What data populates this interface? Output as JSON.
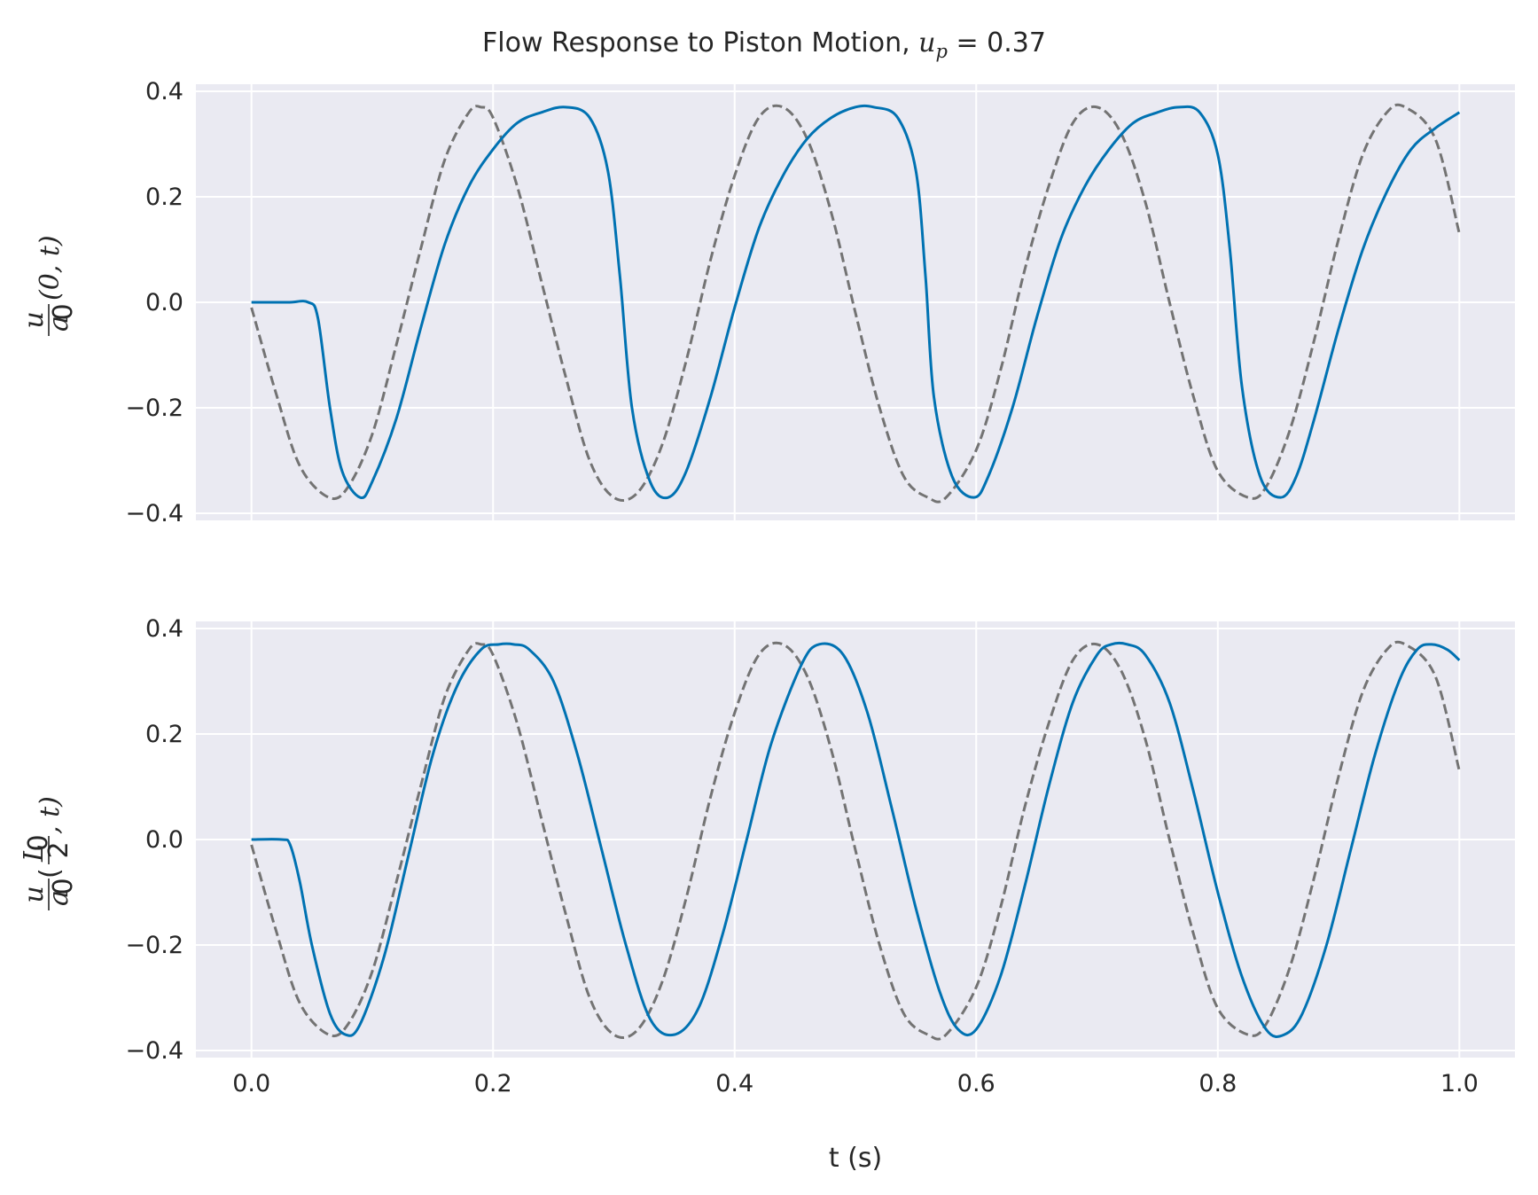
{
  "figure": {
    "title_prefix": "Flow Response to Piston Motion, ",
    "title_math_u": "u",
    "title_math_sub": "p",
    "title_math_rest": " = 0.37",
    "xlabel": "t (s)"
  },
  "colors": {
    "response": "#0072b2",
    "piston": "#737373",
    "panel_bg": "#eaeaf2",
    "grid": "#ffffff"
  },
  "chart_data": [
    {
      "type": "line",
      "panel": "top",
      "ylabel": {
        "frac_num": "u",
        "frac_den": "a",
        "frac_den_sub": "0",
        "args": "(0, t)"
      },
      "xlim": [
        -0.046,
        1.046
      ],
      "ylim": [
        -0.4,
        0.4
      ],
      "xticks": [
        0.0,
        0.2,
        0.4,
        0.6,
        0.8,
        1.0
      ],
      "xtick_labels": [
        "0.0",
        "0.2",
        "0.4",
        "0.6",
        "0.8",
        "1.0"
      ],
      "yticks": [
        -0.4,
        -0.2,
        0.0,
        0.2,
        0.4
      ],
      "ytick_labels": [
        "−0.4",
        "−0.2",
        "0.0",
        "0.2",
        "0.4"
      ],
      "show_xtick_labels": false,
      "grid": true,
      "series": [
        {
          "style": "dashed",
          "color": "#737373",
          "x": [
            0.0,
            0.02,
            0.04,
            0.064,
            0.08,
            0.1,
            0.12,
            0.14,
            0.16,
            0.18,
            0.19,
            0.2,
            0.22,
            0.24,
            0.26,
            0.28,
            0.3,
            0.32,
            0.34,
            0.36,
            0.38,
            0.4,
            0.42,
            0.44,
            0.46,
            0.48,
            0.5,
            0.52,
            0.54,
            0.56,
            0.575,
            0.6,
            0.62,
            0.64,
            0.66,
            0.68,
            0.7,
            0.72,
            0.74,
            0.76,
            0.78,
            0.8,
            0.825,
            0.84,
            0.86,
            0.88,
            0.9,
            0.92,
            0.94,
            0.955,
            0.98,
            1.0
          ],
          "y": [
            -0.01,
            -0.17,
            -0.31,
            -0.37,
            -0.35,
            -0.25,
            -0.08,
            0.1,
            0.27,
            0.36,
            0.37,
            0.35,
            0.22,
            0.04,
            -0.14,
            -0.3,
            -0.37,
            -0.36,
            -0.27,
            -0.11,
            0.08,
            0.24,
            0.35,
            0.37,
            0.31,
            0.17,
            -0.02,
            -0.2,
            -0.33,
            -0.37,
            -0.37,
            -0.28,
            -0.13,
            0.06,
            0.22,
            0.34,
            0.37,
            0.32,
            0.19,
            0.0,
            -0.18,
            -0.32,
            -0.37,
            -0.35,
            -0.24,
            -0.07,
            0.12,
            0.28,
            0.36,
            0.37,
            0.31,
            0.13
          ]
        },
        {
          "style": "solid",
          "color": "#0072b2",
          "x": [
            0.0,
            0.03,
            0.047,
            0.055,
            0.065,
            0.075,
            0.09,
            0.1,
            0.12,
            0.14,
            0.16,
            0.18,
            0.2,
            0.22,
            0.24,
            0.26,
            0.28,
            0.295,
            0.305,
            0.315,
            0.33,
            0.345,
            0.36,
            0.38,
            0.4,
            0.42,
            0.44,
            0.46,
            0.48,
            0.5,
            0.515,
            0.535,
            0.55,
            0.558,
            0.565,
            0.58,
            0.598,
            0.61,
            0.63,
            0.65,
            0.67,
            0.69,
            0.71,
            0.73,
            0.75,
            0.768,
            0.785,
            0.8,
            0.81,
            0.82,
            0.835,
            0.852,
            0.865,
            0.88,
            0.9,
            0.92,
            0.94,
            0.96,
            0.98,
            1.0
          ],
          "y": [
            0.0,
            0.0,
            0.0,
            -0.03,
            -0.2,
            -0.32,
            -0.37,
            -0.34,
            -0.22,
            -0.05,
            0.11,
            0.22,
            0.29,
            0.34,
            0.36,
            0.37,
            0.35,
            0.25,
            0.05,
            -0.2,
            -0.34,
            -0.37,
            -0.32,
            -0.18,
            -0.01,
            0.14,
            0.24,
            0.31,
            0.35,
            0.37,
            0.37,
            0.35,
            0.25,
            0.05,
            -0.18,
            -0.33,
            -0.37,
            -0.33,
            -0.2,
            -0.03,
            0.12,
            0.22,
            0.29,
            0.34,
            0.36,
            0.37,
            0.36,
            0.28,
            0.1,
            -0.16,
            -0.33,
            -0.37,
            -0.33,
            -0.22,
            -0.05,
            0.1,
            0.21,
            0.29,
            0.33,
            0.36
          ]
        }
      ]
    },
    {
      "type": "line",
      "panel": "bottom",
      "ylabel": {
        "frac_num": "u",
        "frac_den": "a",
        "frac_den_sub": "0",
        "inner_num": "L",
        "inner_num_sub": "0",
        "inner_den": "2",
        "args_open": "(",
        "args_close": ", t)"
      },
      "xlim": [
        -0.046,
        1.046
      ],
      "ylim": [
        -0.4,
        0.4
      ],
      "xticks": [
        0.0,
        0.2,
        0.4,
        0.6,
        0.8,
        1.0
      ],
      "xtick_labels": [
        "0.0",
        "0.2",
        "0.4",
        "0.6",
        "0.8",
        "1.0"
      ],
      "yticks": [
        -0.4,
        -0.2,
        0.0,
        0.2,
        0.4
      ],
      "ytick_labels": [
        "−0.4",
        "−0.2",
        "0.0",
        "0.2",
        "0.4"
      ],
      "show_xtick_labels": true,
      "grid": true,
      "series": [
        {
          "style": "dashed",
          "color": "#737373",
          "x": [
            0.0,
            0.02,
            0.04,
            0.064,
            0.08,
            0.1,
            0.12,
            0.14,
            0.16,
            0.18,
            0.19,
            0.2,
            0.22,
            0.24,
            0.26,
            0.28,
            0.3,
            0.32,
            0.34,
            0.36,
            0.38,
            0.4,
            0.42,
            0.44,
            0.46,
            0.48,
            0.5,
            0.52,
            0.54,
            0.56,
            0.575,
            0.6,
            0.62,
            0.64,
            0.66,
            0.68,
            0.7,
            0.72,
            0.74,
            0.76,
            0.78,
            0.8,
            0.825,
            0.84,
            0.86,
            0.88,
            0.9,
            0.92,
            0.94,
            0.955,
            0.98,
            1.0
          ],
          "y": [
            -0.01,
            -0.17,
            -0.31,
            -0.37,
            -0.35,
            -0.25,
            -0.08,
            0.1,
            0.27,
            0.36,
            0.37,
            0.35,
            0.22,
            0.04,
            -0.14,
            -0.3,
            -0.37,
            -0.36,
            -0.27,
            -0.11,
            0.08,
            0.24,
            0.35,
            0.37,
            0.31,
            0.17,
            -0.02,
            -0.2,
            -0.33,
            -0.37,
            -0.37,
            -0.28,
            -0.13,
            0.06,
            0.22,
            0.34,
            0.37,
            0.32,
            0.19,
            0.0,
            -0.18,
            -0.32,
            -0.37,
            -0.35,
            -0.24,
            -0.07,
            0.12,
            0.28,
            0.36,
            0.37,
            0.31,
            0.13
          ]
        },
        {
          "style": "solid",
          "color": "#0072b2",
          "x": [
            0.0,
            0.025,
            0.032,
            0.04,
            0.05,
            0.065,
            0.078,
            0.09,
            0.11,
            0.13,
            0.15,
            0.17,
            0.19,
            0.205,
            0.217,
            0.23,
            0.25,
            0.27,
            0.29,
            0.31,
            0.33,
            0.35,
            0.37,
            0.39,
            0.41,
            0.43,
            0.455,
            0.47,
            0.49,
            0.51,
            0.53,
            0.55,
            0.57,
            0.585,
            0.6,
            0.62,
            0.64,
            0.66,
            0.68,
            0.7,
            0.712,
            0.725,
            0.74,
            0.76,
            0.78,
            0.8,
            0.82,
            0.84,
            0.855,
            0.87,
            0.89,
            0.91,
            0.93,
            0.95,
            0.965,
            0.977,
            0.99,
            1.0
          ],
          "y": [
            0.0,
            0.0,
            -0.01,
            -0.08,
            -0.2,
            -0.33,
            -0.37,
            -0.35,
            -0.22,
            -0.03,
            0.16,
            0.29,
            0.36,
            0.37,
            0.37,
            0.36,
            0.3,
            0.16,
            -0.02,
            -0.2,
            -0.34,
            -0.37,
            -0.32,
            -0.18,
            0.0,
            0.18,
            0.33,
            0.37,
            0.35,
            0.24,
            0.06,
            -0.13,
            -0.29,
            -0.36,
            -0.36,
            -0.26,
            -0.09,
            0.1,
            0.26,
            0.35,
            0.37,
            0.37,
            0.35,
            0.26,
            0.09,
            -0.1,
            -0.26,
            -0.36,
            -0.37,
            -0.33,
            -0.2,
            -0.02,
            0.16,
            0.3,
            0.36,
            0.37,
            0.36,
            0.34
          ]
        }
      ]
    }
  ]
}
